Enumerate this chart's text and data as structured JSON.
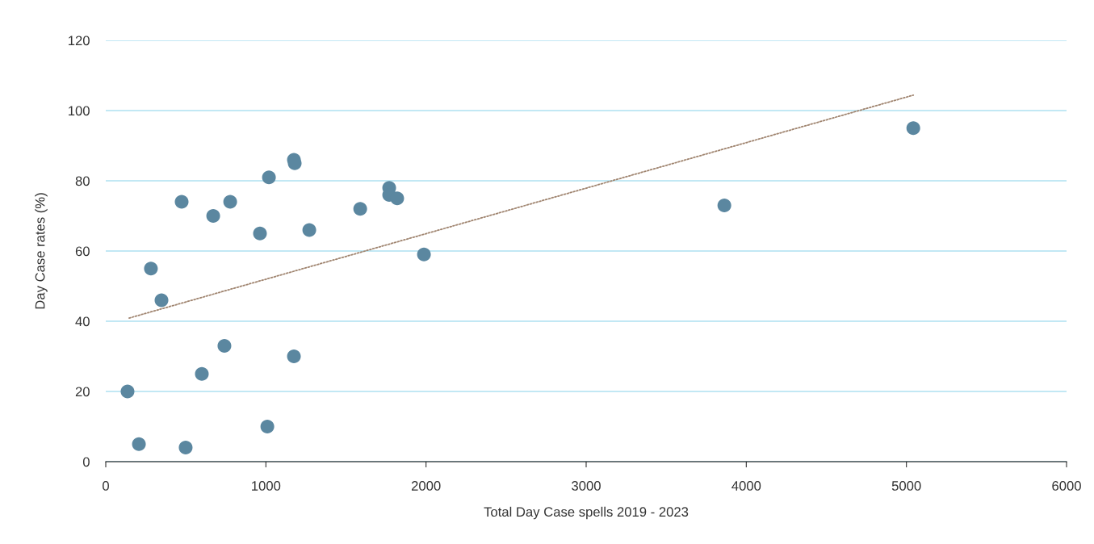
{
  "chart_data": {
    "type": "scatter",
    "xlabel": "Total Day Case spells 2019 - 2023",
    "ylabel": "Day Case rates (%)",
    "xlim": [
      0,
      6000
    ],
    "xticks": [
      0,
      1000,
      2000,
      3000,
      4000,
      5000,
      6000
    ],
    "ylim": [
      0,
      120
    ],
    "yticks": [
      0,
      20,
      40,
      60,
      80,
      100,
      120
    ],
    "grid": "y",
    "series": [
      {
        "marker": "circle",
        "color": "#5b87a0",
        "x": [
          136,
          207,
          282,
          348,
          474,
          499,
          600,
          671,
          741,
          777,
          963,
          1009,
          1019,
          1175,
          1180,
          1175,
          1271,
          1589,
          1770,
          1770,
          1820,
          1987,
          3863,
          5043
        ],
        "values": [
          20,
          5,
          55,
          46,
          74,
          4,
          25,
          70,
          33,
          74,
          65,
          10,
          81,
          86,
          85,
          30,
          66,
          72,
          78,
          76,
          75,
          59,
          73,
          95
        ]
      },
      {
        "type": "line",
        "marker": "none",
        "color": "#a08570",
        "line_style": "dotted",
        "x": [
          146,
          5043
        ],
        "values": [
          40.9,
          104.4
        ]
      }
    ]
  }
}
